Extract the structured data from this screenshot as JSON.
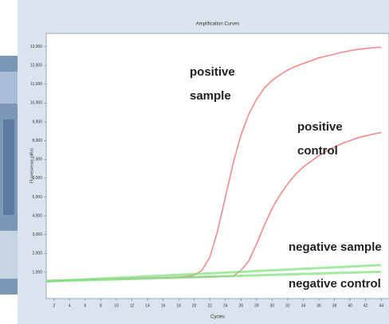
{
  "chart_data": {
    "type": "line",
    "title": "Amplification Curves",
    "x_label": "Cycles",
    "y_label": "Fluorescence (dRn)",
    "x": [
      1,
      2,
      3,
      4,
      5,
      6,
      7,
      8,
      9,
      10,
      11,
      12,
      13,
      14,
      15,
      16,
      17,
      18,
      19,
      20,
      21,
      22,
      23,
      24,
      25,
      26,
      27,
      28,
      29,
      30,
      31,
      32,
      33,
      34,
      35,
      36,
      37,
      38,
      39,
      40,
      41,
      42,
      43,
      44
    ],
    "xlim": [
      1,
      45
    ],
    "xticks": [
      2,
      4,
      6,
      8,
      10,
      12,
      14,
      16,
      18,
      20,
      22,
      24,
      26,
      28,
      30,
      32,
      34,
      36,
      38,
      40,
      42,
      44
    ],
    "ylim": [
      -400,
      13700
    ],
    "yticks": [
      {
        "value": 1000,
        "label": "1,000"
      },
      {
        "value": 2000,
        "label": "2,000"
      },
      {
        "value": 3000,
        "label": "3,000"
      },
      {
        "value": 4000,
        "label": "4,000"
      },
      {
        "value": 5000,
        "label": "5,000"
      },
      {
        "value": 6000,
        "label": "6,000"
      },
      {
        "value": 7000,
        "label": "7,000"
      },
      {
        "value": 8000,
        "label": "8,000"
      },
      {
        "value": 9000,
        "label": "9,000"
      },
      {
        "value": 10000,
        "label": "10,000"
      },
      {
        "value": 11000,
        "label": "11,000"
      },
      {
        "value": 12000,
        "label": "12,000"
      },
      {
        "value": 13000,
        "label": "13,000"
      }
    ],
    "series": [
      {
        "name": "positive sample",
        "color": "#f08a8a",
        "values": [
          560,
          570,
          580,
          590,
          600,
          610,
          620,
          630,
          640,
          650,
          660,
          670,
          680,
          690,
          700,
          710,
          720,
          740,
          780,
          850,
          1100,
          1800,
          3200,
          5000,
          6800,
          8300,
          9400,
          10200,
          10800,
          11200,
          11500,
          11750,
          11950,
          12100,
          12250,
          12400,
          12500,
          12600,
          12700,
          12780,
          12850,
          12900,
          12940,
          12970
        ]
      },
      {
        "name": "positive control",
        "color": "#f08a8a",
        "values": [
          550,
          560,
          570,
          580,
          590,
          600,
          610,
          620,
          630,
          640,
          650,
          660,
          670,
          680,
          690,
          700,
          710,
          720,
          730,
          740,
          750,
          760,
          770,
          780,
          790,
          1100,
          1600,
          2500,
          3500,
          4400,
          5100,
          5700,
          6200,
          6600,
          6900,
          7200,
          7450,
          7650,
          7850,
          8000,
          8150,
          8250,
          8350,
          8430
        ]
      },
      {
        "name": "negative sample",
        "color": "#86e086",
        "values": [
          520,
          540,
          560,
          580,
          600,
          620,
          640,
          660,
          680,
          700,
          720,
          740,
          760,
          780,
          800,
          820,
          840,
          860,
          880,
          900,
          920,
          940,
          960,
          980,
          1000,
          1020,
          1040,
          1060,
          1080,
          1100,
          1120,
          1140,
          1160,
          1180,
          1200,
          1220,
          1240,
          1260,
          1280,
          1300,
          1320,
          1340,
          1360,
          1380
        ]
      },
      {
        "name": "negative control",
        "color": "#86e086",
        "values": [
          510,
          522,
          534,
          546,
          558,
          570,
          582,
          594,
          606,
          618,
          630,
          642,
          654,
          666,
          678,
          690,
          702,
          714,
          726,
          738,
          750,
          762,
          774,
          786,
          798,
          810,
          822,
          834,
          846,
          858,
          870,
          882,
          894,
          906,
          918,
          930,
          942,
          954,
          966,
          978,
          990,
          1002,
          1014,
          1026
        ]
      }
    ]
  }
}
